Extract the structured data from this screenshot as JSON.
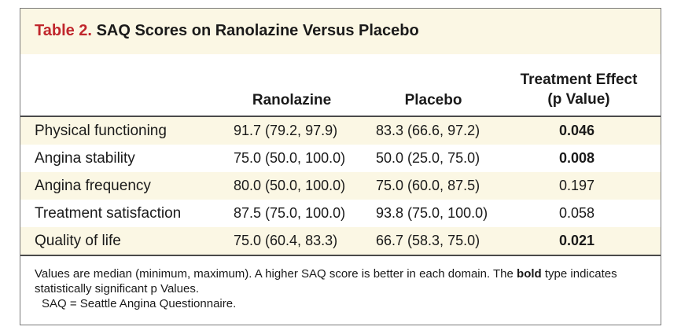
{
  "table": {
    "label": "Table 2.",
    "title": "SAQ Scores on Ranolazine Versus Placebo",
    "columns": {
      "ranolazine": "Ranolazine",
      "placebo": "Placebo",
      "effect_line1": "Treatment Effect",
      "effect_line2": "(p Value)"
    },
    "rows": [
      {
        "domain": "Physical functioning",
        "ranolazine": "91.7 (79.2, 97.9)",
        "placebo": "83.3 (66.6, 97.2)",
        "p": "0.046",
        "significant": true
      },
      {
        "domain": "Angina stability",
        "ranolazine": "75.0 (50.0, 100.0)",
        "placebo": "50.0 (25.0, 75.0)",
        "p": "0.008",
        "significant": true
      },
      {
        "domain": "Angina frequency",
        "ranolazine": "80.0 (50.0, 100.0)",
        "placebo": "75.0 (60.0, 87.5)",
        "p": "0.197",
        "significant": false
      },
      {
        "domain": "Treatment satisfaction",
        "ranolazine": "87.5 (75.0, 100.0)",
        "placebo": "93.8 (75.0, 100.0)",
        "p": "0.058",
        "significant": false
      },
      {
        "domain": "Quality of life",
        "ranolazine": "75.0 (60.4, 83.3)",
        "placebo": "66.7 (58.3, 75.0)",
        "p": "0.021",
        "significant": true
      }
    ],
    "footnote": {
      "part1": "Values are median (minimum, maximum). A higher SAQ score is better in each domain. The ",
      "bold_word": "bold",
      "part2": " type indicates statistically significant p Values.",
      "abbreviation": "SAQ = Seattle Angina Questionnaire."
    },
    "colors": {
      "label": "#c0262c",
      "band": "#fbf7e4",
      "rule": "#4a4a4a"
    }
  }
}
